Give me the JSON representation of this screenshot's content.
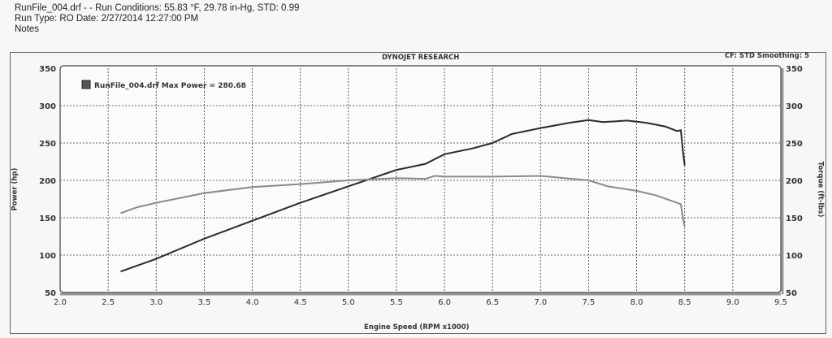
{
  "header": {
    "line1": "RunFile_004.drf -   -  Run Conditions: 55.83 °F, 29.78 in-Hg, STD: 0.99",
    "line2": "Run Type: RO  Date: 2/27/2014 12:27:00 PM",
    "line3": "Notes"
  },
  "chart_data": {
    "type": "line",
    "title": "DYNOJET RESEARCH",
    "corner_note": "CF: STD  Smoothing: 5",
    "xlabel": "Engine Speed (RPM x1000)",
    "ylabel": "Power (hp)",
    "y2label": "Torque (ft-lbs)",
    "xlim": [
      2.0,
      9.5
    ],
    "ylim": [
      50,
      350
    ],
    "y2lim": [
      50,
      350
    ],
    "xticks": [
      "2.0",
      "2.5",
      "3.0",
      "3.5",
      "4.0",
      "4.5",
      "5.0",
      "5.5",
      "6.0",
      "6.5",
      "7.0",
      "7.5",
      "8.0",
      "8.5",
      "9.0",
      "9.5"
    ],
    "yticks": [
      "50",
      "100",
      "150",
      "200",
      "250",
      "300",
      "350"
    ],
    "y2ticks": [
      "50",
      "100",
      "150",
      "200",
      "250",
      "300",
      "350"
    ],
    "grid": true,
    "legend": {
      "text": "RunFile_004.drf Max Power = 280.68",
      "placement": "top-left"
    },
    "series": [
      {
        "name": "Power",
        "axis": "left",
        "color": "#2a2a2a",
        "x": [
          2.63,
          3.0,
          3.5,
          4.0,
          4.5,
          5.0,
          5.5,
          5.8,
          6.0,
          6.3,
          6.5,
          6.7,
          7.0,
          7.3,
          7.5,
          7.65,
          7.9,
          8.1,
          8.3,
          8.42,
          8.46,
          8.48,
          8.5
        ],
        "y": [
          78,
          95,
          122,
          146,
          170,
          192,
          214,
          222,
          235,
          243,
          250,
          262,
          270,
          277,
          280.7,
          278,
          280,
          277,
          272,
          266,
          267,
          240,
          220
        ]
      },
      {
        "name": "Torque",
        "axis": "right",
        "color": "#8a8a8a",
        "x": [
          2.63,
          2.8,
          3.0,
          3.5,
          4.0,
          4.5,
          5.0,
          5.5,
          5.8,
          5.9,
          6.0,
          6.5,
          7.0,
          7.5,
          7.7,
          8.0,
          8.2,
          8.42,
          8.46,
          8.48,
          8.5
        ],
        "y": [
          156,
          164,
          170,
          183,
          191,
          195,
          200,
          203,
          202,
          206,
          205,
          205,
          206,
          200,
          192,
          186,
          180,
          170,
          168,
          150,
          138
        ]
      }
    ]
  }
}
